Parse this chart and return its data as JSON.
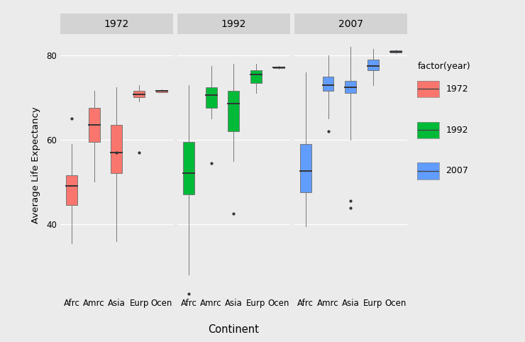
{
  "years": [
    "1972",
    "1992",
    "2007"
  ],
  "continents": [
    "Afrc",
    "Amrc",
    "Asia",
    "Eurp",
    "Ocen"
  ],
  "colors": {
    "1972": "#F8766D",
    "1992": "#00BA38",
    "2007": "#619CFF"
  },
  "background_color": "#EBEBEB",
  "panel_bg": "#EBEBEB",
  "strip_bg": "#D3D3D3",
  "grid_color": "#FFFFFF",
  "legend_title": "factor(year)",
  "xlabel": "Continent",
  "ylabel": "Average Life Expectancy",
  "ylim": [
    23,
    85
  ],
  "yticks": [
    40,
    60,
    80
  ],
  "boxplot_data": {
    "1972": {
      "Afrc": {
        "whislo": 35.5,
        "q1": 44.5,
        "med": 49.0,
        "q3": 51.5,
        "whishi": 59.0,
        "fliers": [
          65.0
        ]
      },
      "Amrc": {
        "whislo": 50.0,
        "q1": 59.5,
        "med": 63.5,
        "q3": 67.5,
        "whishi": 71.5,
        "fliers": []
      },
      "Asia": {
        "whislo": 36.0,
        "q1": 52.0,
        "med": 57.0,
        "q3": 63.5,
        "whishi": 72.5,
        "fliers": [
          57.0
        ]
      },
      "Eurp": {
        "whislo": 69.0,
        "q1": 70.0,
        "med": 70.8,
        "q3": 71.5,
        "whishi": 73.0,
        "fliers": [
          57.0
        ]
      },
      "Ocen": {
        "whislo": 71.2,
        "q1": 71.3,
        "med": 71.5,
        "q3": 71.7,
        "whishi": 71.9,
        "fliers": []
      }
    },
    "1992": {
      "Afrc": {
        "whislo": 28.0,
        "q1": 47.0,
        "med": 52.0,
        "q3": 59.5,
        "whishi": 73.0,
        "fliers": [
          23.5
        ]
      },
      "Amrc": {
        "whislo": 65.0,
        "q1": 67.5,
        "med": 70.5,
        "q3": 72.5,
        "whishi": 77.5,
        "fliers": [
          54.5
        ]
      },
      "Asia": {
        "whislo": 55.0,
        "q1": 62.0,
        "med": 68.5,
        "q3": 71.5,
        "whishi": 78.0,
        "fliers": [
          42.5
        ]
      },
      "Eurp": {
        "whislo": 71.0,
        "q1": 73.5,
        "med": 75.5,
        "q3": 76.5,
        "whishi": 78.0,
        "fliers": []
      },
      "Ocen": {
        "whislo": 76.8,
        "q1": 76.9,
        "med": 77.1,
        "q3": 77.3,
        "whishi": 77.5,
        "fliers": []
      }
    },
    "2007": {
      "Afrc": {
        "whislo": 39.5,
        "q1": 47.5,
        "med": 52.5,
        "q3": 59.0,
        "whishi": 76.0,
        "fliers": []
      },
      "Amrc": {
        "whislo": 65.0,
        "q1": 71.5,
        "med": 72.9,
        "q3": 75.0,
        "whishi": 80.0,
        "fliers": [
          62.0
        ]
      },
      "Asia": {
        "whislo": 60.0,
        "q1": 71.0,
        "med": 72.5,
        "q3": 74.0,
        "whishi": 82.0,
        "fliers": [
          43.8,
          45.5
        ]
      },
      "Eurp": {
        "whislo": 73.0,
        "q1": 76.5,
        "med": 77.5,
        "q3": 79.0,
        "whishi": 81.5,
        "fliers": []
      },
      "Ocen": {
        "whislo": 80.5,
        "q1": 80.7,
        "med": 80.9,
        "q3": 81.1,
        "whishi": 81.4,
        "fliers": []
      }
    }
  }
}
